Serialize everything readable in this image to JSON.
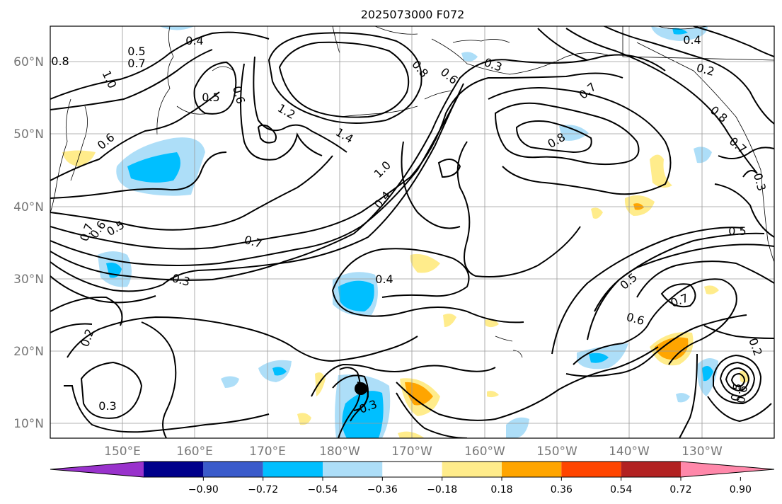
{
  "title": "2025073000 F072",
  "axes": {
    "lat_labels": [
      "60°N",
      "50°N",
      "40°N",
      "30°N",
      "20°N",
      "10°N"
    ],
    "lon_labels": [
      "150°E",
      "160°E",
      "170°E",
      "180°W",
      "170°W",
      "160°W",
      "150°W",
      "140°W",
      "130°W"
    ]
  },
  "colorbar": {
    "colors": [
      "#9932CC",
      "#00008B",
      "#3A5BCB",
      "#00BFFF",
      "#ADDEF8",
      "#FFFFFF",
      "#FFEC8B",
      "#FFA500",
      "#FF4500",
      "#B22222",
      "#FF88AA"
    ],
    "labels": [
      "−0.90",
      "−0.72",
      "−0.54",
      "−0.36",
      "−0.18",
      "0.18",
      "0.36",
      "0.54",
      "0.72",
      "0.90"
    ]
  },
  "contour_labels": [
    "0.8",
    "0.5",
    "0.7",
    "0.4",
    "1.0",
    "0.5",
    "0.6",
    "0.6",
    "0.7",
    "0.6",
    "0.5",
    "1.2",
    "1.4",
    "1.0",
    "0.4",
    "0.7",
    "0.3",
    "0.4",
    "0.2",
    "0.3",
    "0.3",
    "0.8",
    "0.6",
    "0.3",
    "0.7",
    "0.8",
    "0.4",
    "0.2",
    "0.7",
    "0.3",
    "0.5",
    "0.5",
    "0.7",
    "0.6",
    "0.2",
    "0.6",
    "0.5",
    "0.8"
  ],
  "markers": [
    "tropical-cyclone-center"
  ]
}
